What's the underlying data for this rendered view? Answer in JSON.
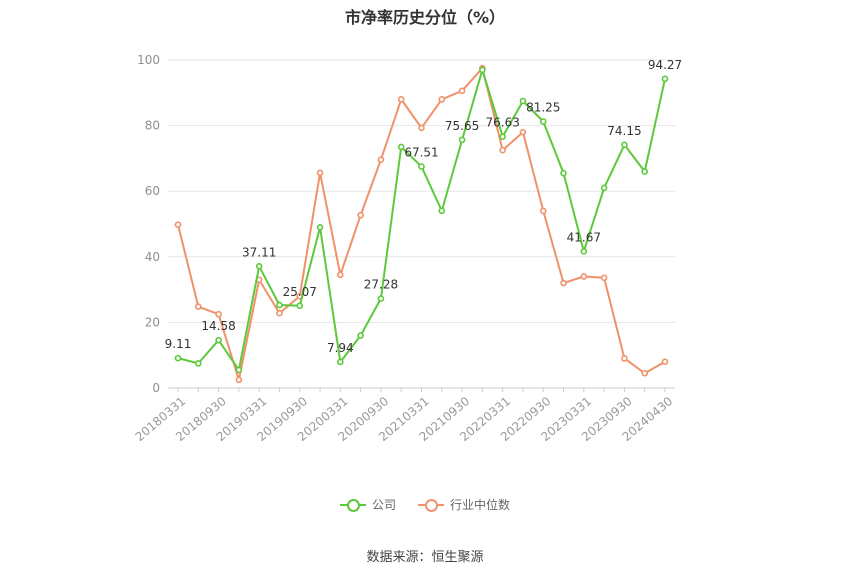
{
  "chart_data": {
    "type": "line",
    "title": "市净率历史分位（%）",
    "ylim": [
      0,
      100
    ],
    "yticks": [
      0,
      20,
      40,
      60,
      80,
      100
    ],
    "x_tick_labels": [
      "20180331",
      "20180930",
      "20190331",
      "20190930",
      "20200331",
      "20200930",
      "20210331",
      "20210930",
      "20220331",
      "20220930",
      "20230331",
      "20230930",
      "20240430"
    ],
    "x": [
      "20180331",
      "20180630",
      "20180930",
      "20181231",
      "20190331",
      "20190630",
      "20190930",
      "20191231",
      "20200331",
      "20200630",
      "20200930",
      "20201231",
      "20210331",
      "20210630",
      "20210930",
      "20211231",
      "20220331",
      "20220630",
      "20220930",
      "20221231",
      "20230331",
      "20230630",
      "20230930",
      "20231231",
      "20240430"
    ],
    "series": [
      {
        "name": "公司",
        "color": "#5cc93a",
        "values": [
          9.11,
          7.5,
          14.58,
          5.5,
          37.11,
          25.3,
          25.07,
          49.0,
          7.94,
          16.0,
          27.28,
          73.5,
          67.51,
          54.0,
          75.65,
          97.0,
          76.63,
          87.5,
          81.25,
          65.5,
          41.67,
          61.0,
          74.15,
          66.0,
          94.27
        ],
        "labels": {
          "0": "9.11",
          "2": "14.58",
          "4": "37.11",
          "6": "25.07",
          "8": "7.94",
          "10": "27.28",
          "12": "67.51",
          "14": "75.65",
          "16": "76.63",
          "18": "81.25",
          "20": "41.67",
          "22": "74.15",
          "24": "94.27"
        }
      },
      {
        "name": "行业中位数",
        "color": "#f0916a",
        "values": [
          49.8,
          24.8,
          22.5,
          2.5,
          33.0,
          22.8,
          28.0,
          65.6,
          34.5,
          52.7,
          69.6,
          88.0,
          79.3,
          88.0,
          90.6,
          97.5,
          72.5,
          78.0,
          54.0,
          32.0,
          34.0,
          33.6,
          9.0,
          4.5,
          8.0
        ]
      }
    ],
    "grid": true,
    "legend": "bottom"
  },
  "legend": {
    "company": "公司",
    "industry": "行业中位数"
  },
  "source": "数据来源：恒生聚源"
}
